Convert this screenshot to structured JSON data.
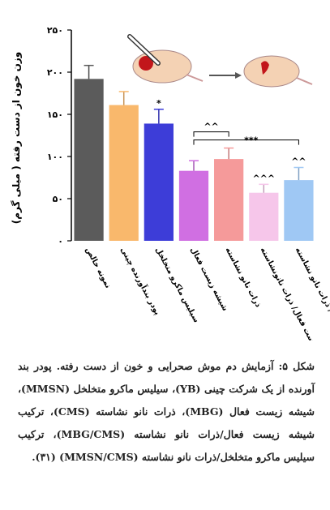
{
  "chart_data": {
    "type": "bar",
    "ylabel": "وزن خون از دست رفته ( میلی گرم)",
    "categories": [
      "نمونه خالص",
      "پودر بندآورنده چینی",
      "سیلیس ماکرو متخلخل",
      "شیشه زیست فعال",
      "ذرات نانو نشاسته",
      "شیشه زیست فعال/ ذرات نانونشاسته",
      "سیلیس ماکرو متخلخل / ذرات نانو نشاسته"
    ],
    "values": [
      192,
      161,
      139,
      83,
      97,
      57,
      72
    ],
    "errors": [
      16,
      16,
      17,
      12,
      13,
      10,
      15
    ],
    "colors": [
      "#5b5b5b",
      "#f9b86c",
      "#3d3dd8",
      "#d06fe2",
      "#f59a9a",
      "#f6c6ea",
      "#9fc8f4"
    ],
    "ylim": [
      0,
      250
    ],
    "yticks": [
      {
        "value": 0,
        "label": "٠"
      },
      {
        "value": 50,
        "label": "۵۰"
      },
      {
        "value": 100,
        "label": "۱۰۰"
      },
      {
        "value": 150,
        "label": "۱۵۰"
      },
      {
        "value": 200,
        "label": "۲۰۰"
      },
      {
        "value": 250,
        "label": "۲۵۰"
      }
    ],
    "annotations": [
      "*",
      "^^",
      "***",
      "^^^",
      "^^"
    ]
  },
  "caption": "شکل ۵: آزمایش دم موش صحرایی و خون از دست رفته. پودر بند آورنده از یک شرکت چینی (YB)، سیلیس ماکرو متخلخل (MMSN)، شیشه زیست فعال (MBG)، ذرات نانو نشاسته (CMS)، ترکیب شیشه زیست فعال/ذرات نانو نشاسته (MBG/CMS)، ترکیب سیلیس ماکرو متخلخل/ذرات نانو نشاسته (MMSN/CMS) (۳۱)."
}
